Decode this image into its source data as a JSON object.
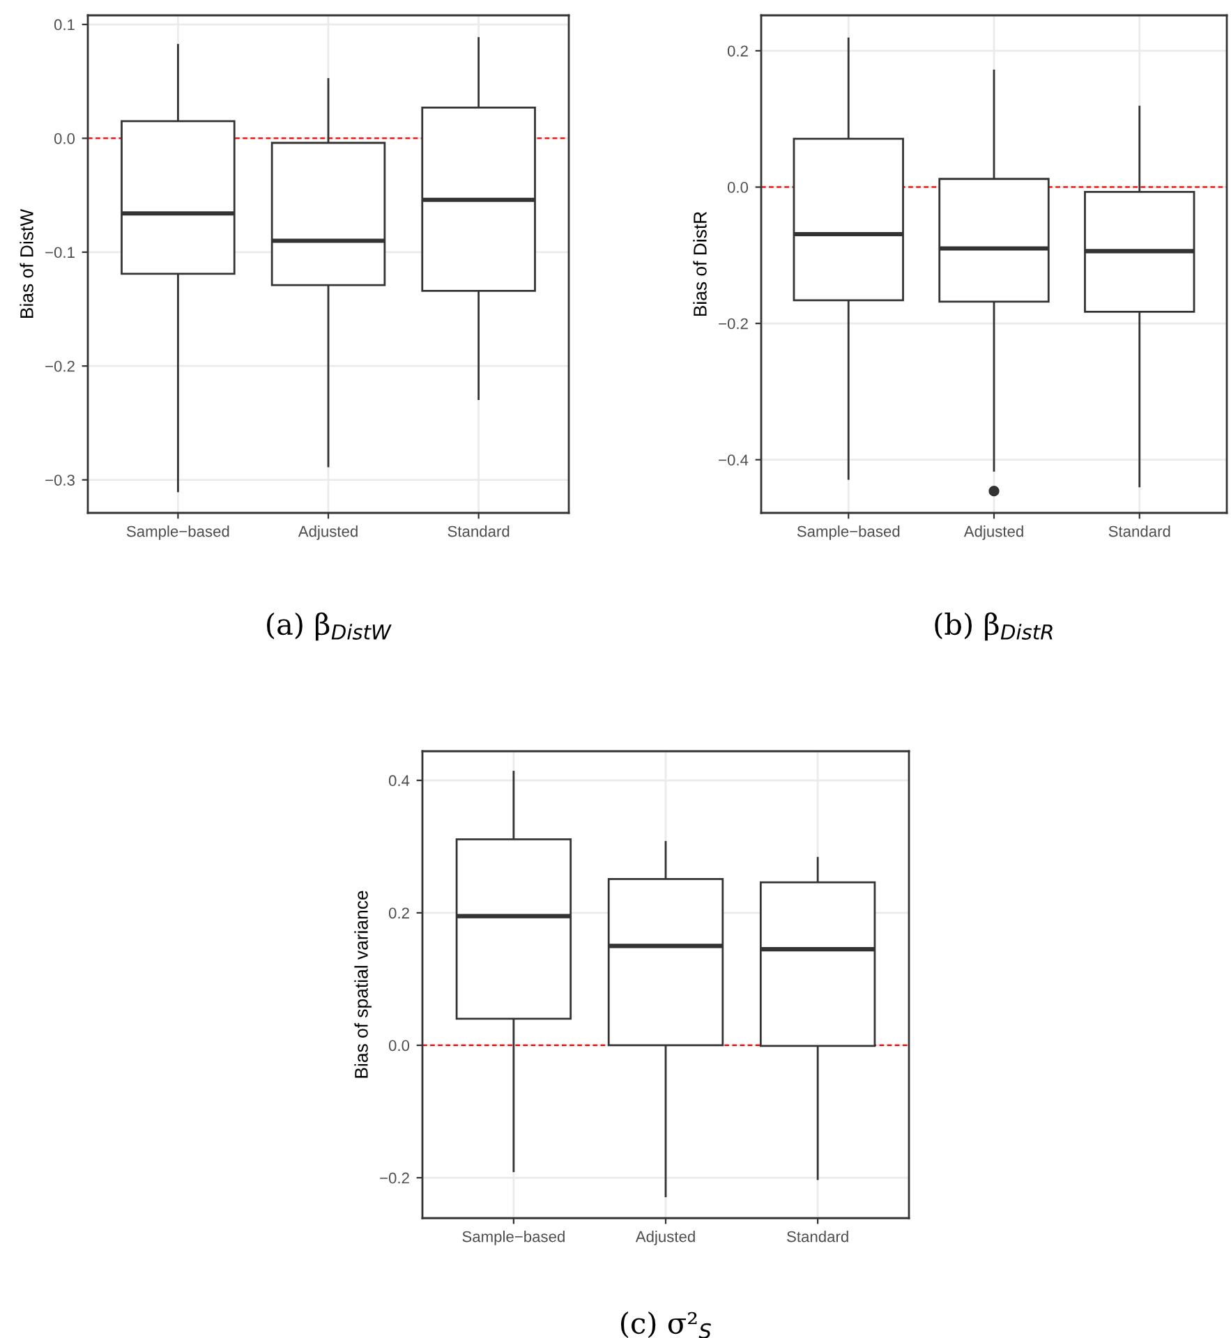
{
  "chart_data": [
    {
      "type": "box",
      "title": "(a) β$_{DistW}$",
      "ylabel": "Bias of DistW",
      "categories": [
        "Sample−based",
        "Adjusted",
        "Standard"
      ],
      "boxes": [
        {
          "low": -0.31,
          "q1": -0.119,
          "median": -0.066,
          "q3": 0.015,
          "high": 0.082
        },
        {
          "low": -0.288,
          "q1": -0.129,
          "median": -0.09,
          "q3": -0.004,
          "high": 0.052
        },
        {
          "low": -0.229,
          "q1": -0.134,
          "median": -0.054,
          "q3": 0.027,
          "high": 0.088
        }
      ],
      "ylim": [
        -0.329,
        0.108
      ],
      "yticks": [
        {
          "value": -0.3,
          "label": "−0.3"
        },
        {
          "value": -0.2,
          "label": "−0.2"
        },
        {
          "value": -0.1,
          "label": "−0.1"
        },
        {
          "value": 0.0,
          "label": "0.0"
        },
        {
          "value": 0.1,
          "label": "0.1"
        }
      ],
      "ref_lines": [
        {
          "axis": "y",
          "value": 0,
          "color": "#ff0000",
          "line_style": "dashed"
        }
      ],
      "grid": true
    },
    {
      "type": "box",
      "title": "(b) β$_{DistR}$",
      "ylabel": "Bias of DistR",
      "categories": [
        "Sample−based",
        "Adjusted",
        "Standard"
      ],
      "boxes": [
        {
          "low": -0.428,
          "q1": -0.166,
          "median": -0.069,
          "q3": 0.071,
          "high": 0.218
        },
        {
          "low": -0.416,
          "q1": -0.168,
          "median": -0.09,
          "q3": 0.012,
          "high": 0.171,
          "outliers": [
            -0.446
          ]
        },
        {
          "low": -0.439,
          "q1": -0.183,
          "median": -0.094,
          "q3": -0.007,
          "high": 0.118
        }
      ],
      "ylim": [
        -0.478,
        0.252
      ],
      "yticks": [
        {
          "value": -0.4,
          "label": "−0.4"
        },
        {
          "value": -0.2,
          "label": "−0.2"
        },
        {
          "value": 0.0,
          "label": "0.0"
        },
        {
          "value": 0.2,
          "label": "0.2"
        }
      ],
      "ref_lines": [
        {
          "axis": "y",
          "value": 0,
          "color": "#ff0000",
          "line_style": "dashed"
        }
      ],
      "grid": true
    },
    {
      "type": "box",
      "title": "(c) σ²$_{S}$",
      "ylabel": "Bias of spatial variance",
      "categories": [
        "Sample−based",
        "Adjusted",
        "Standard"
      ],
      "boxes": [
        {
          "low": -0.19,
          "q1": 0.04,
          "median": 0.195,
          "q3": 0.311,
          "high": 0.413
        },
        {
          "low": -0.228,
          "q1": 0.0,
          "median": 0.15,
          "q3": 0.251,
          "high": 0.307
        },
        {
          "low": -0.202,
          "q1": -0.001,
          "median": 0.145,
          "q3": 0.246,
          "high": 0.283
        }
      ],
      "ylim": [
        -0.261,
        0.444
      ],
      "yticks": [
        {
          "value": -0.2,
          "label": "−0.2"
        },
        {
          "value": 0.0,
          "label": "0.0"
        },
        {
          "value": 0.2,
          "label": "0.2"
        },
        {
          "value": 0.4,
          "label": "0.4"
        }
      ],
      "ref_lines": [
        {
          "axis": "y",
          "value": 0,
          "color": "#ff0000",
          "line_style": "dashed"
        }
      ],
      "grid": true
    }
  ]
}
